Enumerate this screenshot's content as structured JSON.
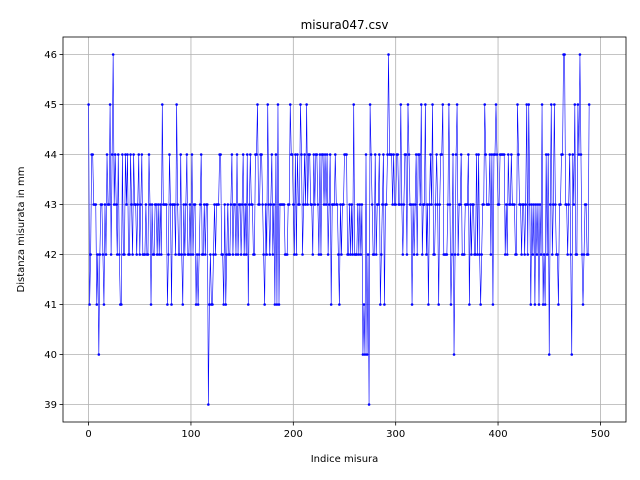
{
  "chart_data": {
    "type": "line",
    "title": "misura047.csv",
    "xlabel": "Indice misura",
    "ylabel": "Distanza misurata in mm",
    "xlim": [
      -25,
      525
    ],
    "ylim": [
      38.65,
      46.35
    ],
    "xticks": [
      0,
      100,
      200,
      300,
      400,
      500
    ],
    "yticks": [
      39,
      40,
      41,
      42,
      43,
      44,
      45,
      46
    ],
    "grid": true,
    "legend": "none",
    "series": [
      {
        "color": "#0000ff",
        "marker": "point",
        "x_start": 0,
        "x_step": 1,
        "values": [
          45,
          41,
          42,
          44,
          44,
          43,
          43,
          43,
          41,
          42,
          40,
          42,
          43,
          43,
          42,
          41,
          43,
          42,
          44,
          43,
          43,
          45,
          42,
          44,
          46,
          43,
          44,
          43,
          42,
          44,
          42,
          41,
          41,
          44,
          42,
          42,
          44,
          43,
          44,
          42,
          42,
          44,
          43,
          42,
          44,
          43,
          43,
          42,
          43,
          44,
          42,
          43,
          44,
          42,
          42,
          42,
          43,
          42,
          42,
          44,
          43,
          41,
          43,
          42,
          42,
          43,
          43,
          42,
          43,
          42,
          43,
          42,
          45,
          43,
          43,
          43,
          43,
          41,
          42,
          44,
          43,
          41,
          43,
          43,
          43,
          42,
          45,
          43,
          42,
          42,
          44,
          42,
          41,
          43,
          42,
          43,
          44,
          42,
          42,
          43,
          42,
          44,
          42,
          43,
          43,
          41,
          42,
          41,
          42,
          43,
          44,
          42,
          42,
          43,
          42,
          43,
          43,
          39,
          41,
          42,
          41,
          41,
          42,
          43,
          42,
          43,
          43,
          43,
          44,
          44,
          42,
          42,
          41,
          43,
          41,
          42,
          43,
          42,
          42,
          43,
          44,
          42,
          43,
          43,
          42,
          44,
          42,
          43,
          43,
          42,
          43,
          44,
          42,
          43,
          42,
          44,
          41,
          43,
          44,
          43,
          43,
          42,
          42,
          44,
          44,
          45,
          43,
          43,
          44,
          44,
          43,
          42,
          41,
          43,
          42,
          45,
          43,
          42,
          43,
          44,
          42,
          43,
          41,
          44,
          41,
          45,
          41,
          43,
          43,
          43,
          43,
          43,
          42,
          42,
          42,
          43,
          43,
          45,
          44,
          44,
          43,
          42,
          44,
          42,
          44,
          43,
          43,
          45,
          44,
          42,
          43,
          44,
          43,
          45,
          43,
          44,
          44,
          43,
          43,
          42,
          44,
          43,
          44,
          44,
          43,
          42,
          44,
          42,
          44,
          44,
          43,
          44,
          43,
          44,
          42,
          43,
          44,
          41,
          43,
          43,
          43,
          44,
          43,
          43,
          42,
          41,
          43,
          42,
          43,
          43,
          44,
          44,
          44,
          42,
          42,
          43,
          42,
          43,
          42,
          45,
          42,
          42,
          42,
          43,
          42,
          43,
          42,
          43,
          40,
          41,
          40,
          44,
          40,
          42,
          39,
          45,
          44,
          43,
          42,
          42,
          44,
          42,
          43,
          43,
          44,
          41,
          42,
          43,
          44,
          41,
          43,
          43,
          44,
          46,
          44,
          44,
          44,
          43,
          44,
          43,
          43,
          44,
          44,
          43,
          43,
          45,
          43,
          42,
          43,
          44,
          44,
          42,
          45,
          44,
          43,
          43,
          41,
          43,
          42,
          43,
          44,
          42,
          44,
          44,
          43,
          45,
          42,
          43,
          43,
          45,
          42,
          43,
          41,
          43,
          44,
          43,
          45,
          42,
          42,
          43,
          44,
          43,
          41,
          43,
          44,
          44,
          45,
          42,
          42,
          42,
          42,
          43,
          45,
          43,
          41,
          42,
          44,
          40,
          42,
          44,
          45,
          42,
          43,
          43,
          44,
          42,
          42,
          42,
          43,
          43,
          43,
          44,
          41,
          43,
          42,
          43,
          43,
          42,
          42,
          44,
          42,
          44,
          42,
          41,
          42,
          43,
          43,
          45,
          44,
          43,
          43,
          43,
          44,
          42,
          44,
          41,
          44,
          44,
          45,
          44,
          43,
          43,
          44,
          44,
          44,
          44,
          44,
          42,
          43,
          42,
          44,
          43,
          43,
          44,
          43,
          43,
          43,
          42,
          42,
          45,
          44,
          43,
          43,
          42,
          43,
          43,
          42,
          43,
          45,
          42,
          45,
          43,
          41,
          43,
          42,
          43,
          41,
          43,
          42,
          43,
          41,
          43,
          42,
          45,
          41,
          42,
          41,
          44,
          42,
          44,
          40,
          43,
          45,
          42,
          43,
          45,
          43,
          42,
          42,
          41,
          43,
          43,
          44,
          44,
          46,
          46,
          43,
          43,
          42,
          43,
          44,
          42,
          40,
          44,
          43,
          45,
          42,
          42,
          45,
          44,
          46,
          44,
          42,
          41,
          42,
          43,
          43,
          42,
          42,
          45
        ]
      }
    ]
  }
}
